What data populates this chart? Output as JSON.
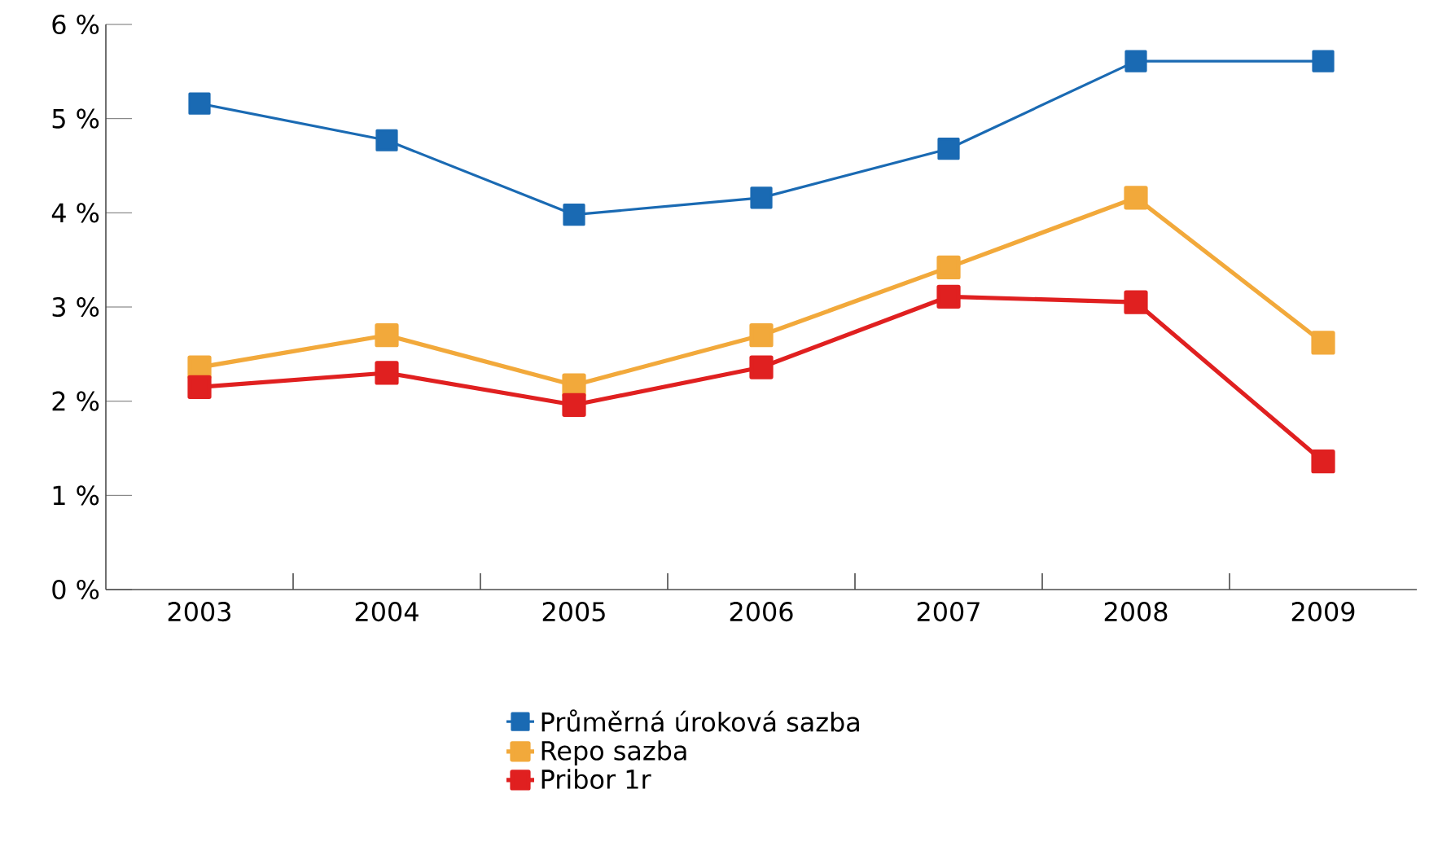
{
  "chart_data": {
    "type": "line",
    "categories": [
      "2003",
      "2004",
      "2005",
      "2006",
      "2007",
      "2008",
      "2009"
    ],
    "series": [
      {
        "name": "Průměrná úroková sazba",
        "color": "#1a6ab3",
        "values": [
          5.16,
          4.77,
          3.98,
          4.16,
          4.68,
          5.61,
          5.61
        ]
      },
      {
        "name": "Repo sazba",
        "color": "#f2a93b",
        "values": [
          2.36,
          2.7,
          2.17,
          2.7,
          3.42,
          4.16,
          2.62
        ]
      },
      {
        "name": "Pribor 1r",
        "color": "#e02020",
        "values": [
          2.15,
          2.3,
          1.96,
          2.36,
          3.11,
          3.05,
          1.36
        ]
      }
    ],
    "ylim": [
      0,
      6
    ],
    "yticks": [
      {
        "value": 0,
        "label": "0 %"
      },
      {
        "value": 1,
        "label": "1 %"
      },
      {
        "value": 2,
        "label": "2 %"
      },
      {
        "value": 3,
        "label": "3 %"
      },
      {
        "value": 4,
        "label": "4 %"
      },
      {
        "value": 5,
        "label": "5 %"
      },
      {
        "value": 6,
        "label": "6 %"
      }
    ],
    "legend": "bottom",
    "marker": "square"
  }
}
